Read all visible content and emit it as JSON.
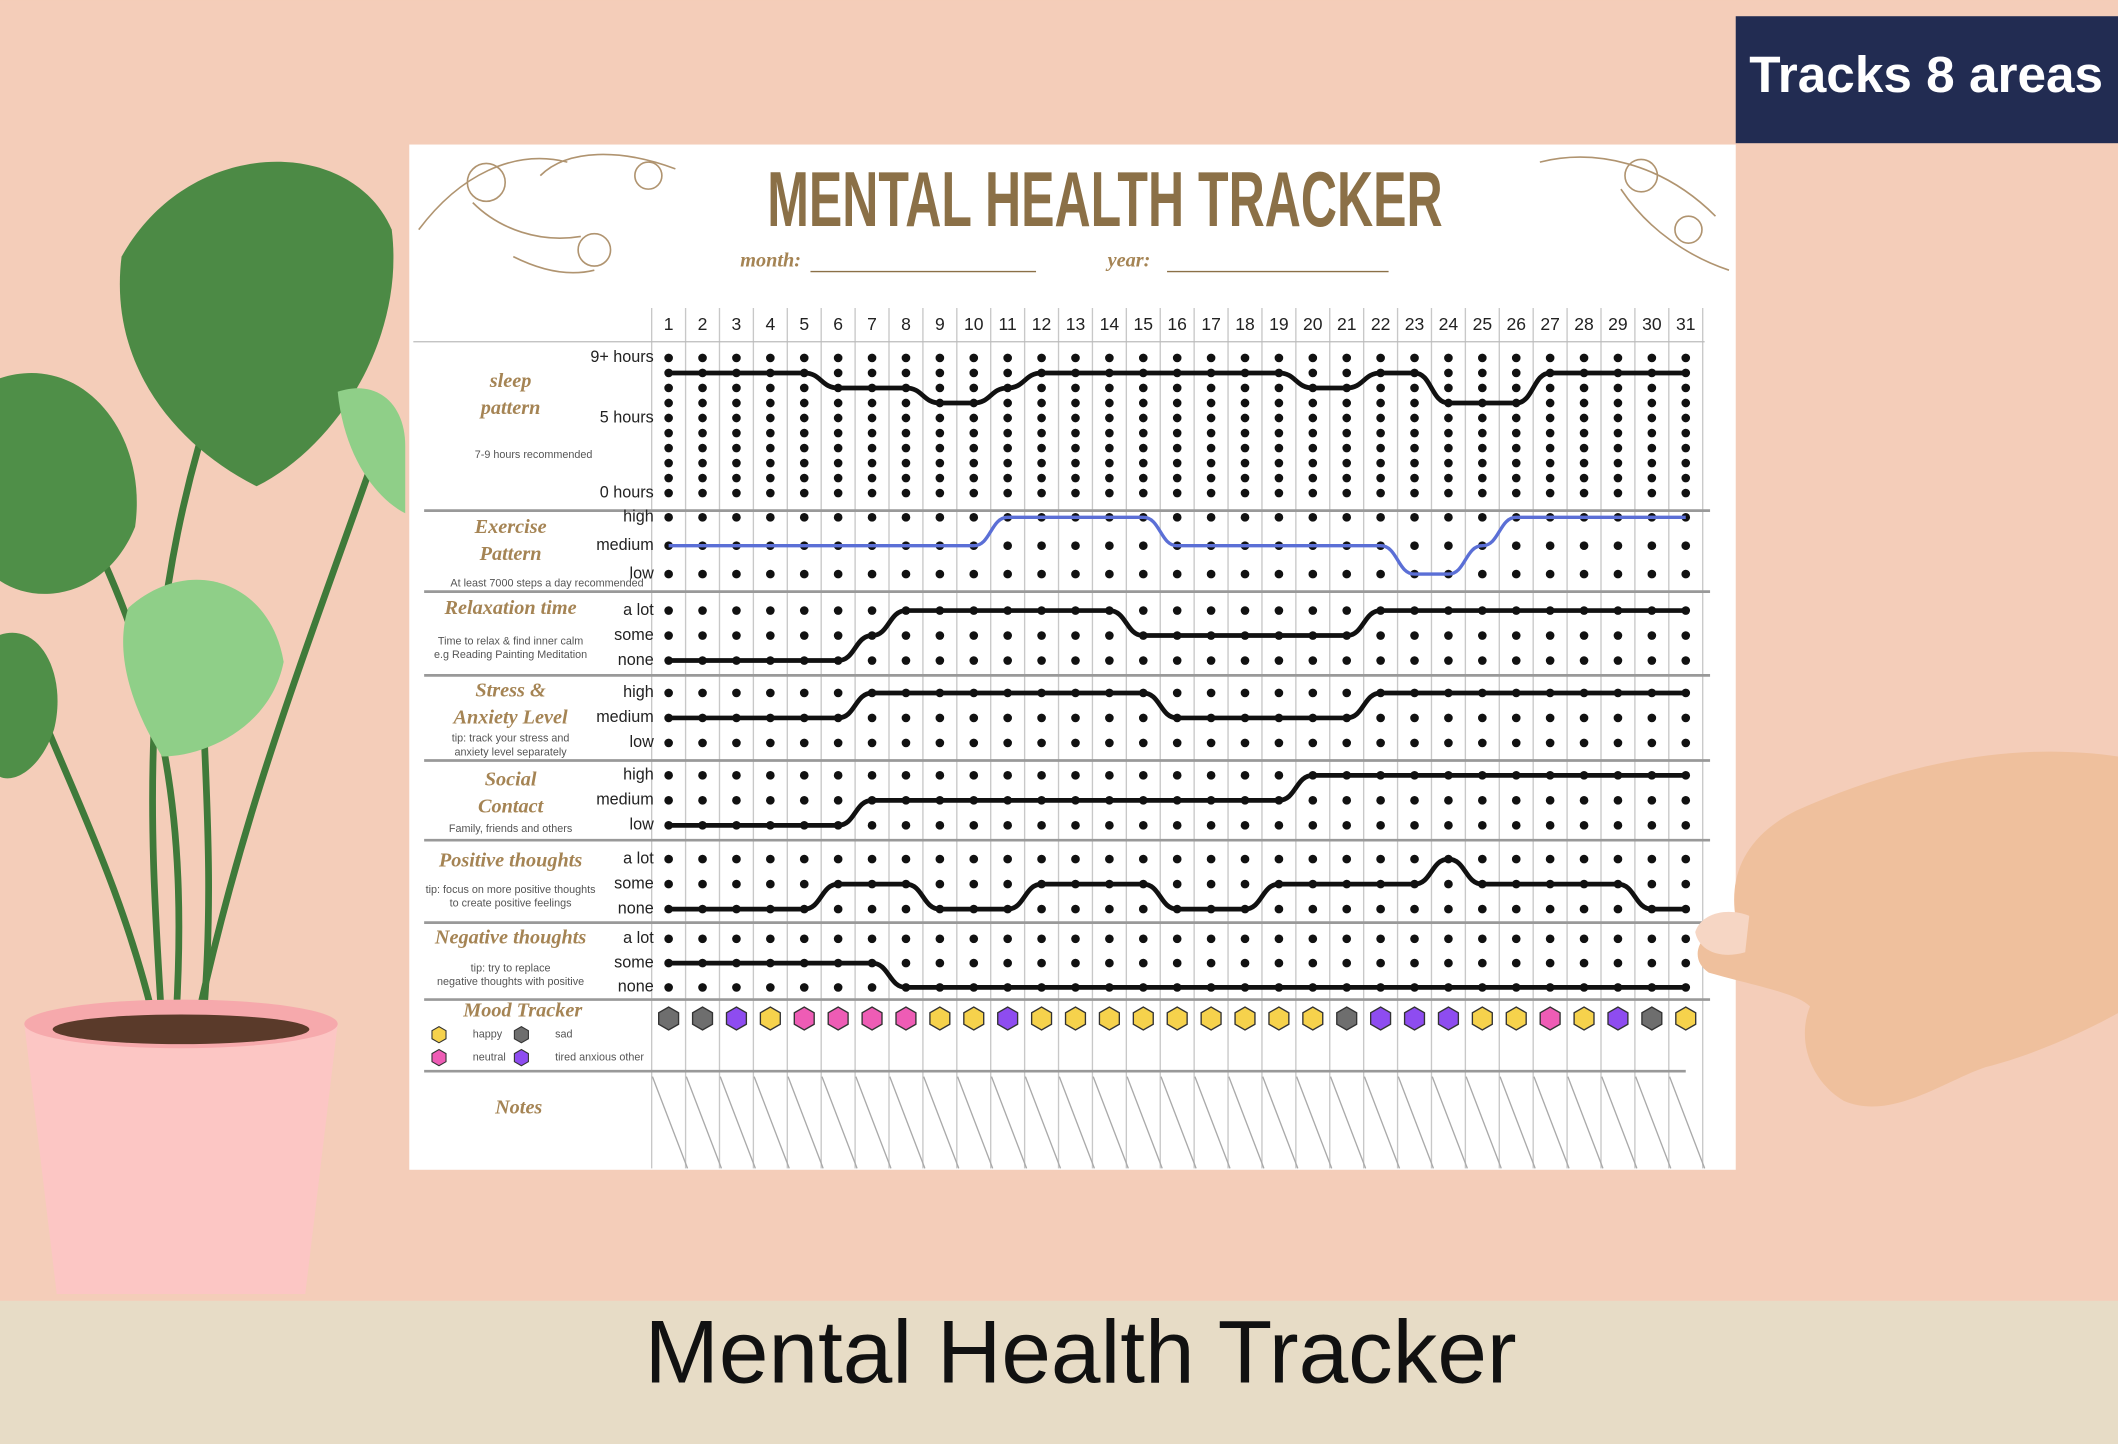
{
  "badge": "Tracks 8 areas",
  "caption": "Mental Health Tracker",
  "sheet": {
    "title": "MENTAL HEALTH TRACKER",
    "month_label": "month:",
    "year_label": "year:",
    "days": [
      1,
      2,
      3,
      4,
      5,
      6,
      7,
      8,
      9,
      10,
      11,
      12,
      13,
      14,
      15,
      16,
      17,
      18,
      19,
      20,
      21,
      22,
      23,
      24,
      25,
      26,
      27,
      28,
      29,
      30,
      31
    ],
    "trackers": [
      {
        "title_lines": [
          "sleep",
          "pattern"
        ],
        "note_lines": [
          "7-9 hours recommended"
        ],
        "levels": [
          "0 hours",
          null,
          null,
          null,
          null,
          "5 hours",
          null,
          null,
          null,
          "9+ hours"
        ],
        "line_color": "#111111",
        "values": [
          8,
          8,
          8,
          8,
          8,
          7,
          7,
          7,
          6,
          6,
          7,
          8,
          8,
          8,
          8,
          8,
          8,
          8,
          8,
          7,
          7,
          8,
          8,
          6,
          6,
          6,
          8,
          8,
          8,
          8,
          8
        ]
      },
      {
        "title_lines": [
          "Exercise",
          "Pattern"
        ],
        "note_lines": [
          "At least 7000 steps a day recommended"
        ],
        "levels": [
          "low",
          "medium",
          "high"
        ],
        "line_color": "#5b6fd6",
        "values": [
          1,
          1,
          1,
          1,
          1,
          1,
          1,
          1,
          1,
          1,
          2,
          2,
          2,
          2,
          2,
          1,
          1,
          1,
          1,
          1,
          1,
          1,
          0,
          0,
          1,
          2,
          2,
          2,
          2,
          2,
          2
        ]
      },
      {
        "title_lines": [
          "Relaxation time"
        ],
        "note_lines": [
          "Time to relax & find inner calm",
          "e.g Reading Painting Meditation"
        ],
        "levels": [
          "none",
          "some",
          "a lot"
        ],
        "line_color": "#111111",
        "values": [
          0,
          0,
          0,
          0,
          0,
          0,
          1,
          2,
          2,
          2,
          2,
          2,
          2,
          2,
          1,
          1,
          1,
          1,
          1,
          1,
          1,
          2,
          2,
          2,
          2,
          2,
          2,
          2,
          2,
          2,
          2
        ]
      },
      {
        "title_lines": [
          "Stress &",
          "Anxiety Level"
        ],
        "note_lines": [
          "tip: track your stress and",
          "anxiety level separately"
        ],
        "levels": [
          "low",
          "medium",
          "high"
        ],
        "line_color": "#111111",
        "values": [
          1,
          1,
          1,
          1,
          1,
          1,
          2,
          2,
          2,
          2,
          2,
          2,
          2,
          2,
          2,
          1,
          1,
          1,
          1,
          1,
          1,
          2,
          2,
          2,
          2,
          2,
          2,
          2,
          2,
          2,
          2
        ]
      },
      {
        "title_lines": [
          "Social",
          "Contact"
        ],
        "note_lines": [
          "Family, friends and others"
        ],
        "levels": [
          "low",
          "medium",
          "high"
        ],
        "line_color": "#111111",
        "values": [
          0,
          0,
          0,
          0,
          0,
          0,
          1,
          1,
          1,
          1,
          1,
          1,
          1,
          1,
          1,
          1,
          1,
          1,
          1,
          2,
          2,
          2,
          2,
          2,
          2,
          2,
          2,
          2,
          2,
          2,
          2
        ]
      },
      {
        "title_lines": [
          "Positive thoughts"
        ],
        "note_lines": [
          "tip: focus on more positive thoughts",
          "to create positive feelings"
        ],
        "levels": [
          "none",
          "some",
          "a lot"
        ],
        "line_color": "#111111",
        "values": [
          0,
          0,
          0,
          0,
          0,
          1,
          1,
          1,
          0,
          0,
          0,
          1,
          1,
          1,
          1,
          0,
          0,
          0,
          1,
          1,
          1,
          1,
          1,
          2,
          1,
          1,
          1,
          1,
          1,
          0,
          0
        ]
      },
      {
        "title_lines": [
          "Negative thoughts"
        ],
        "note_lines": [
          "tip: try to replace",
          "negative thoughts with positive"
        ],
        "levels": [
          "none",
          "some",
          "a lot"
        ],
        "line_color": "#111111",
        "values": [
          1,
          1,
          1,
          1,
          1,
          1,
          1,
          0,
          0,
          0,
          0,
          0,
          0,
          0,
          0,
          0,
          0,
          0,
          0,
          0,
          0,
          0,
          0,
          0,
          0,
          0,
          0,
          0,
          0,
          0,
          0
        ]
      }
    ],
    "mood_title": "Mood Tracker",
    "moods": [
      {
        "label": "happy",
        "color": "#f6d24c"
      },
      {
        "label": "sad",
        "color": "#6e6e6e"
      },
      {
        "label": "neutral",
        "color": "#ee5cb5"
      },
      {
        "label": "tired anxious other",
        "color": "#8e4cf0"
      }
    ],
    "mood_values": [
      1,
      1,
      3,
      0,
      2,
      2,
      2,
      2,
      0,
      0,
      3,
      0,
      0,
      0,
      0,
      0,
      0,
      0,
      0,
      0,
      1,
      3,
      3,
      3,
      0,
      0,
      2,
      0,
      3,
      1,
      0
    ],
    "notes_title": "Notes"
  }
}
